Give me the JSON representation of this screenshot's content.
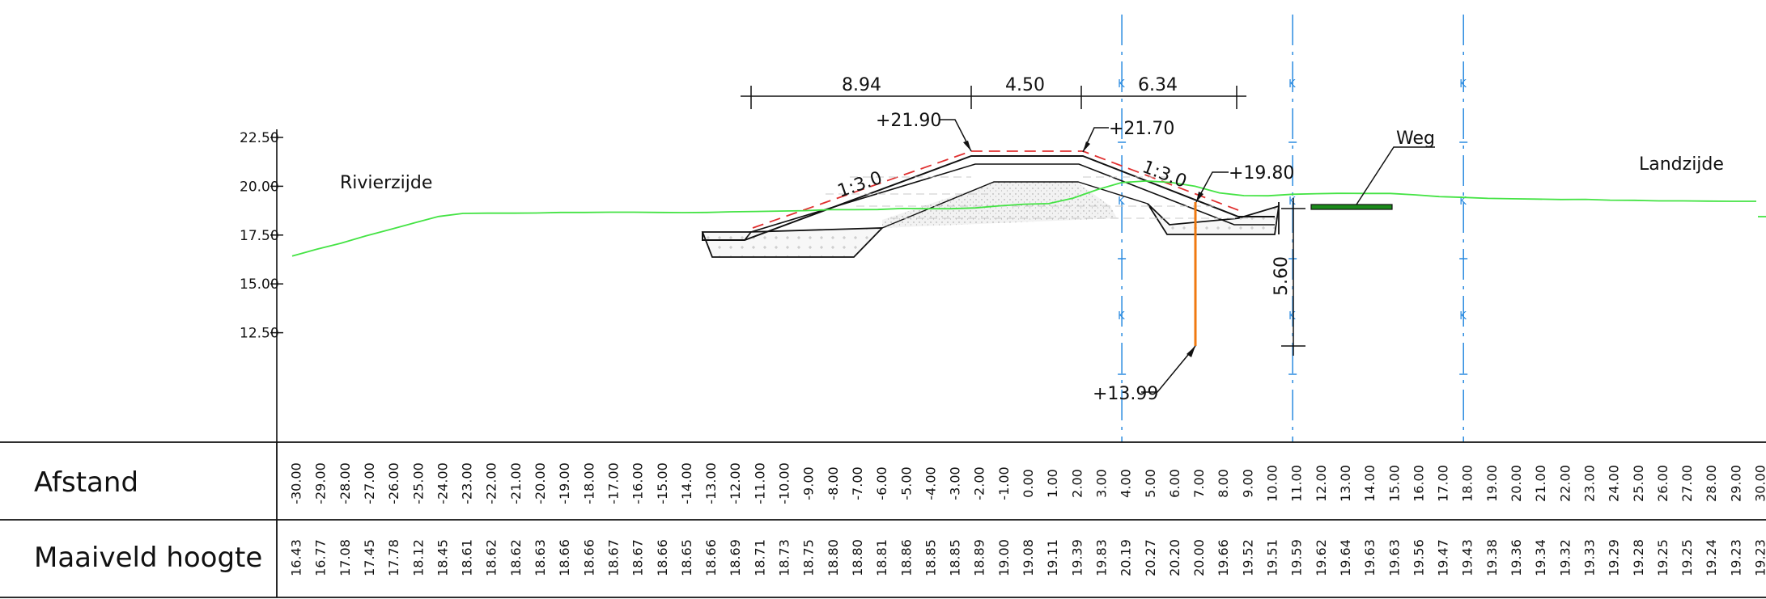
{
  "labels": {
    "river_side": "Rivierzijde",
    "land_side": "Landzijde",
    "road": "Weg"
  },
  "elevations": {
    "crest_left": "+21.90",
    "crest_right": "+21.70",
    "berm": "+19.80",
    "bottom": "+13.99"
  },
  "slopes": {
    "left": "1:3.0",
    "right": "1:3.0"
  },
  "dimensions": {
    "top_left": "8.94",
    "top_mid": "4.50",
    "top_right": "6.34",
    "vertical": "5.60"
  },
  "table": {
    "row1_label": "Afstand",
    "row2_label": "Maaiveld hoogte"
  },
  "colors": {
    "ground_line": "#44e344",
    "axis_lines": "#2a8be0",
    "design_profile": "#e03030",
    "borehole": "#f07a10",
    "road": "#1a8a1a"
  },
  "chart_data": {
    "type": "line",
    "ylim": [
      10.0,
      22.5
    ],
    "xlim": [
      -30,
      30
    ],
    "y_ticks": [
      "22.50",
      "20.00",
      "17.50",
      "15.00",
      "12.50"
    ],
    "x": [
      -30,
      -29,
      -28,
      -27,
      -26,
      -25,
      -24,
      -23,
      -22,
      -21,
      -20,
      -19,
      -18,
      -17,
      -16,
      -15,
      -14,
      -13,
      -12,
      -11,
      -10,
      -9,
      -8,
      -7,
      -6,
      -5,
      -4,
      -3,
      -2,
      -1,
      0,
      1,
      2,
      3,
      4,
      5,
      6,
      7,
      8,
      9,
      10,
      11,
      12,
      13,
      14,
      15,
      16,
      17,
      18,
      19,
      20,
      21,
      22,
      23,
      24,
      25,
      26,
      27,
      28,
      29,
      30
    ],
    "x_tick_labels": [
      "-30.00",
      "-29.00",
      "-28.00",
      "-27.00",
      "-26.00",
      "-25.00",
      "-24.00",
      "-23.00",
      "-22.00",
      "-21.00",
      "-20.00",
      "-19.00",
      "-18.00",
      "-17.00",
      "-16.00",
      "-15.00",
      "-14.00",
      "-13.00",
      "-12.00",
      "-11.00",
      "-10.00",
      "-9.00",
      "-8.00",
      "-7.00",
      "-6.00",
      "-5.00",
      "-4.00",
      "-3.00",
      "-2.00",
      "-1.00",
      "0.00",
      "1.00",
      "2.00",
      "3.00",
      "4.00",
      "5.00",
      "6.00",
      "7.00",
      "8.00",
      "9.00",
      "10.00",
      "11.00",
      "12.00",
      "13.00",
      "14.00",
      "15.00",
      "16.00",
      "17.00",
      "18.00",
      "19.00",
      "20.00",
      "21.00",
      "22.00",
      "23.00",
      "24.00",
      "25.00",
      "26.00",
      "27.00",
      "28.00",
      "29.00",
      "30.00"
    ],
    "ground_height_labels": [
      "16.43",
      "16.77",
      "17.08",
      "17.45",
      "17.78",
      "18.12",
      "18.45",
      "18.61",
      "18.62",
      "18.62",
      "18.63",
      "18.66",
      "18.66",
      "18.67",
      "18.67",
      "18.66",
      "18.65",
      "18.66",
      "18.69",
      "18.71",
      "18.73",
      "18.75",
      "18.80",
      "18.80",
      "18.81",
      "18.86",
      "18.85",
      "18.85",
      "18.89",
      "19.00",
      "19.08",
      "19.11",
      "19.39",
      "19.83",
      "20.19",
      "20.27",
      "20.20",
      "20.00",
      "19.66",
      "19.52",
      "19.51",
      "19.59",
      "19.62",
      "19.64",
      "19.63",
      "19.63",
      "19.56",
      "19.47",
      "19.43",
      "19.38",
      "19.36",
      "19.34",
      "19.32",
      "19.33",
      "19.29",
      "19.28",
      "19.25",
      "19.25",
      "19.24",
      "19.23",
      "19.23"
    ],
    "series": [
      {
        "values": [
          16.43,
          16.77,
          17.08,
          17.45,
          17.78,
          18.12,
          18.45,
          18.61,
          18.62,
          18.62,
          18.63,
          18.66,
          18.66,
          18.67,
          18.67,
          18.66,
          18.65,
          18.66,
          18.69,
          18.71,
          18.73,
          18.75,
          18.8,
          18.8,
          18.81,
          18.86,
          18.85,
          18.85,
          18.89,
          19.0,
          19.08,
          19.11,
          19.39,
          19.83,
          20.19,
          20.27,
          20.2,
          20.0,
          19.66,
          19.52,
          19.51,
          19.59,
          19.62,
          19.64,
          19.63,
          19.63,
          19.56,
          19.47,
          19.43,
          19.38,
          19.36,
          19.34,
          19.32,
          19.33,
          19.29,
          19.28,
          19.25,
          19.25,
          19.24,
          19.23,
          19.23
        ]
      }
    ],
    "grid": false
  }
}
